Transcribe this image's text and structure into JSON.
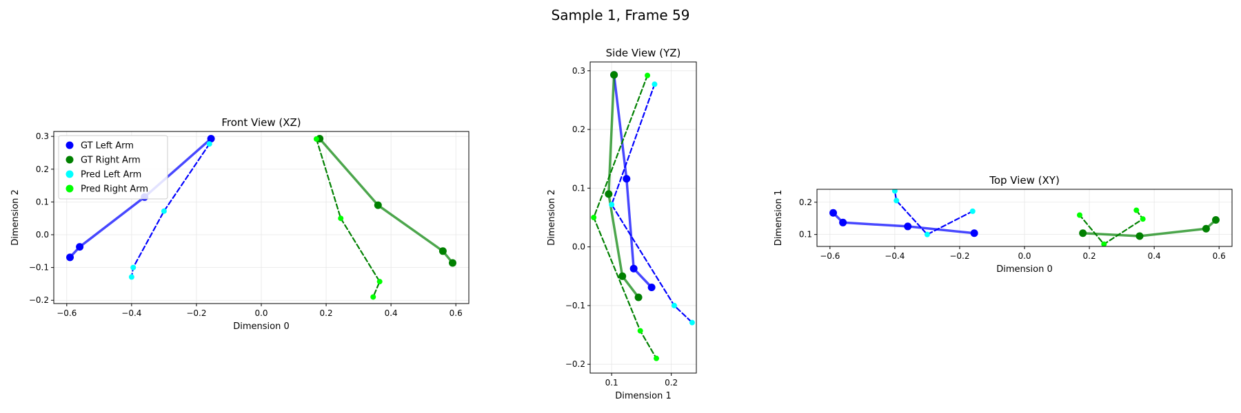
{
  "figure": {
    "title": "Sample 1, Frame 59"
  },
  "legend": {
    "entries": [
      {
        "label": "GT Left Arm",
        "color": "#0000ff"
      },
      {
        "label": "GT Right Arm",
        "color": "#008000"
      },
      {
        "label": "Pred Left Arm",
        "color": "#00ffff"
      },
      {
        "label": "Pred Right Arm",
        "color": "#00ff00"
      }
    ],
    "placement": "upper-left (Front View)"
  },
  "colors": {
    "gt_left": "#0000ff",
    "gt_right": "#008000",
    "pred_left": "#00ffff",
    "pred_right": "#00ff00"
  },
  "chart_data": [
    {
      "type": "line",
      "title": "Front View (XZ)",
      "xlabel": "Dimension 0",
      "ylabel": "Dimension 2",
      "xlim": [
        -0.64,
        0.64
      ],
      "ylim": [
        -0.21,
        0.315
      ],
      "xticks": [
        -0.6,
        -0.4,
        -0.2,
        0.0,
        0.2,
        0.4,
        0.6
      ],
      "xtick_labels": [
        "−0.6",
        "−0.4",
        "−0.2",
        "0.0",
        "0.2",
        "0.4",
        "0.6"
      ],
      "yticks": [
        -0.2,
        -0.1,
        0.0,
        0.1,
        0.2,
        0.3
      ],
      "ytick_labels": [
        "−0.2",
        "−0.1",
        "0.0",
        "0.1",
        "0.2",
        "0.3"
      ],
      "grid": true,
      "series": [
        {
          "name": "GT Left Arm",
          "style": "solid",
          "x": [
            -0.155,
            -0.36,
            -0.56,
            -0.59
          ],
          "y": [
            0.293,
            0.115,
            -0.037,
            -0.069
          ]
        },
        {
          "name": "GT Right Arm",
          "style": "solid",
          "x": [
            0.18,
            0.36,
            0.56,
            0.59
          ],
          "y": [
            0.293,
            0.09,
            -0.05,
            -0.086
          ]
        },
        {
          "name": "Pred Left Arm",
          "style": "dashed",
          "x": [
            -0.16,
            -0.3,
            -0.395,
            -0.4
          ],
          "y": [
            0.277,
            0.072,
            -0.1,
            -0.129
          ]
        },
        {
          "name": "Pred Right Arm",
          "style": "dashed",
          "x": [
            0.17,
            0.245,
            0.365,
            0.345
          ],
          "y": [
            0.292,
            0.05,
            -0.143,
            -0.19
          ]
        }
      ]
    },
    {
      "type": "line",
      "title": "Side View (YZ)",
      "xlabel": "Dimension 1",
      "ylabel": "Dimension 2",
      "xlim": [
        0.064,
        0.242
      ],
      "ylim": [
        -0.215,
        0.315
      ],
      "xticks": [
        0.1,
        0.2
      ],
      "xtick_labels": [
        "0.1",
        "0.2"
      ],
      "yticks": [
        -0.2,
        -0.1,
        0.0,
        0.1,
        0.2,
        0.3
      ],
      "ytick_labels": [
        "−0.2",
        "−0.1",
        "0.0",
        "0.1",
        "0.2",
        "0.3"
      ],
      "grid": true,
      "series": [
        {
          "name": "GT Left Arm",
          "style": "solid",
          "x": [
            0.104,
            0.125,
            0.137,
            0.167
          ],
          "y": [
            0.293,
            0.116,
            -0.037,
            -0.069
          ]
        },
        {
          "name": "GT Right Arm",
          "style": "solid",
          "x": [
            0.104,
            0.095,
            0.118,
            0.145
          ],
          "y": [
            0.293,
            0.09,
            -0.05,
            -0.086
          ]
        },
        {
          "name": "Pred Left Arm",
          "style": "dashed",
          "x": [
            0.172,
            0.1,
            0.205,
            0.235
          ],
          "y": [
            0.277,
            0.072,
            -0.1,
            -0.129
          ]
        },
        {
          "name": "Pred Right Arm",
          "style": "dashed",
          "x": [
            0.16,
            0.07,
            0.148,
            0.175
          ],
          "y": [
            0.292,
            0.05,
            -0.143,
            -0.19
          ]
        }
      ]
    },
    {
      "type": "line",
      "title": "Top View (XY)",
      "xlabel": "Dimension 0",
      "ylabel": "Dimension 1",
      "xlim": [
        -0.64,
        0.64
      ],
      "ylim": [
        0.063,
        0.24
      ],
      "xticks": [
        -0.6,
        -0.4,
        -0.2,
        0.0,
        0.2,
        0.4,
        0.6
      ],
      "xtick_labels": [
        "−0.6",
        "−0.4",
        "−0.2",
        "0.0",
        "0.2",
        "0.4",
        "0.6"
      ],
      "yticks": [
        0.1,
        0.2
      ],
      "ytick_labels": [
        "0.1",
        "0.2"
      ],
      "grid": true,
      "series": [
        {
          "name": "GT Left Arm",
          "style": "solid",
          "x": [
            -0.155,
            -0.36,
            -0.56,
            -0.59
          ],
          "y": [
            0.104,
            0.125,
            0.137,
            0.167
          ]
        },
        {
          "name": "GT Right Arm",
          "style": "solid",
          "x": [
            0.18,
            0.355,
            0.56,
            0.59
          ],
          "y": [
            0.104,
            0.095,
            0.118,
            0.145
          ]
        },
        {
          "name": "Pred Left Arm",
          "style": "dashed",
          "x": [
            -0.16,
            -0.3,
            -0.395,
            -0.4
          ],
          "y": [
            0.172,
            0.1,
            0.205,
            0.235
          ]
        },
        {
          "name": "Pred Right Arm",
          "style": "dashed",
          "x": [
            0.345,
            0.365,
            0.245,
            0.17
          ],
          "y": [
            0.175,
            0.148,
            0.07,
            0.16
          ]
        }
      ]
    }
  ]
}
